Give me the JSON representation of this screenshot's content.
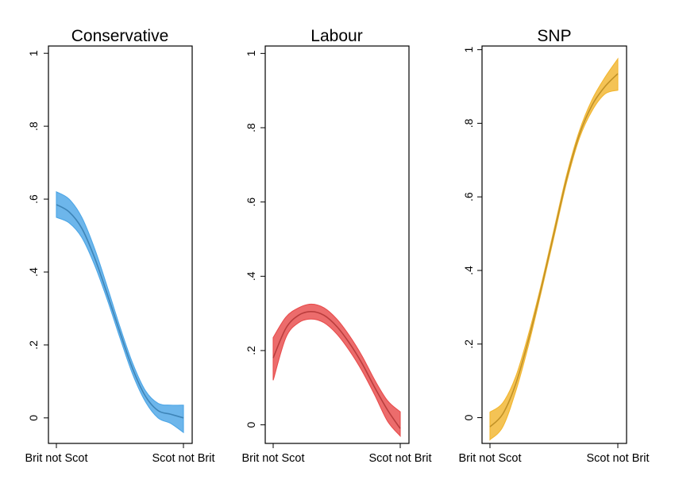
{
  "chart_data": [
    {
      "type": "line",
      "title": "Conservative",
      "xlabel": "",
      "ylabel": "",
      "categories": [
        "Brit not Scot",
        "Scot not Brit"
      ],
      "ylim": [
        -0.07,
        1.02
      ],
      "yticks": [
        "0",
        ".2",
        ".4",
        ".6",
        ".8",
        "1"
      ],
      "grid": false,
      "color": "#4da6e6",
      "x": [
        0,
        0.1,
        0.2,
        0.3,
        0.4,
        0.5,
        0.6,
        0.7,
        0.8,
        0.9,
        1.0
      ],
      "series": [
        {
          "values": [
            0.585,
            0.565,
            0.52,
            0.44,
            0.34,
            0.235,
            0.135,
            0.06,
            0.02,
            0.01,
            0.0
          ],
          "lower": [
            0.55,
            0.535,
            0.495,
            0.42,
            0.325,
            0.22,
            0.12,
            0.045,
            0.0,
            -0.015,
            -0.04
          ],
          "upper": [
            0.62,
            0.6,
            0.55,
            0.465,
            0.36,
            0.25,
            0.15,
            0.075,
            0.04,
            0.035,
            0.035
          ]
        }
      ]
    },
    {
      "type": "line",
      "title": "Labour",
      "xlabel": "",
      "ylabel": "",
      "categories": [
        "Brit not Scot",
        "Scot not Brit"
      ],
      "ylim": [
        -0.05,
        1.02
      ],
      "yticks": [
        "0",
        ".2",
        ".4",
        ".6",
        ".8",
        "1"
      ],
      "grid": false,
      "color": "#e84c4c",
      "x": [
        0,
        0.1,
        0.2,
        0.3,
        0.4,
        0.5,
        0.6,
        0.7,
        0.8,
        0.9,
        1.0
      ],
      "series": [
        {
          "values": [
            0.18,
            0.26,
            0.295,
            0.305,
            0.295,
            0.265,
            0.22,
            0.165,
            0.1,
            0.04,
            -0.01
          ],
          "lower": [
            0.12,
            0.235,
            0.275,
            0.285,
            0.275,
            0.245,
            0.2,
            0.145,
            0.08,
            0.01,
            -0.03
          ],
          "upper": [
            0.235,
            0.29,
            0.315,
            0.325,
            0.315,
            0.285,
            0.24,
            0.185,
            0.12,
            0.065,
            0.035
          ]
        }
      ]
    },
    {
      "type": "line",
      "title": "SNP",
      "xlabel": "",
      "ylabel": "",
      "categories": [
        "Brit not Scot",
        "Scot not Brit"
      ],
      "ylim": [
        -0.07,
        1.01
      ],
      "yticks": [
        "0",
        ".2",
        ".4",
        ".6",
        ".8",
        "1"
      ],
      "grid": false,
      "color": "#f2b630",
      "x": [
        0,
        0.1,
        0.2,
        0.3,
        0.4,
        0.5,
        0.6,
        0.7,
        0.8,
        0.9,
        1.0
      ],
      "series": [
        {
          "values": [
            -0.025,
            0.01,
            0.09,
            0.21,
            0.35,
            0.5,
            0.65,
            0.77,
            0.85,
            0.9,
            0.935
          ],
          "lower": [
            -0.06,
            -0.025,
            0.07,
            0.195,
            0.34,
            0.49,
            0.64,
            0.76,
            0.835,
            0.88,
            0.89
          ],
          "upper": [
            0.015,
            0.04,
            0.11,
            0.225,
            0.36,
            0.51,
            0.66,
            0.78,
            0.865,
            0.925,
            0.975
          ]
        }
      ]
    }
  ]
}
